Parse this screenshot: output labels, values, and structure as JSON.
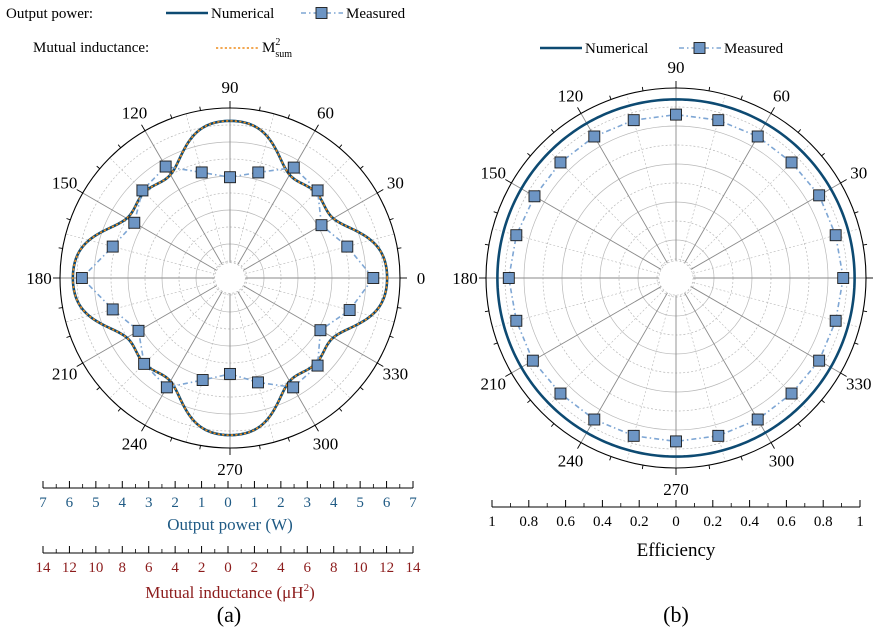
{
  "colors": {
    "numerical": "#0d4a72",
    "measured_line": "#7ea6d4",
    "measured_marker_fill": "#6d95c4",
    "mutual": "#ee8b1a",
    "power_axis": "#1f5a84",
    "mutual_axis": "#8c1c1c",
    "grid": "#b8b8b8",
    "spoke": "#8a8a8a"
  },
  "chart_data": [
    {
      "panel_label": "(a)",
      "type": "polar-line",
      "legend": {
        "row1_title": "Output power:",
        "row2_title": "Mutual inductance:",
        "numerical": "Numerical",
        "measured": "Measured",
        "mutual_main": "M",
        "mutual_sup": "2",
        "mutual_sub": "sum"
      },
      "angle_labels": [
        "0",
        "30",
        "60",
        "90",
        "120",
        "150",
        "180",
        "210",
        "240",
        "270",
        "300",
        "330"
      ],
      "r_max": 7,
      "power_axis": {
        "label": "Output power (W)",
        "ticks": [
          "7",
          "6",
          "5",
          "4",
          "3",
          "2",
          "1",
          "0",
          "1",
          "2",
          "3",
          "4",
          "5",
          "6",
          "7"
        ]
      },
      "mutual_axis": {
        "label_main": "Mutual inductance (μH",
        "label_sup": "2",
        "label_end": ")",
        "ticks": [
          "14",
          "12",
          "10",
          "8",
          "6",
          "4",
          "2",
          "0",
          "2",
          "4",
          "6",
          "8",
          "10",
          "12",
          "14"
        ]
      },
      "series": [
        {
          "name": "Numerical",
          "kind": "numerical",
          "model": {
            "formula": "c0 + c1*cos(4θ) + c2*cos(8θ) + c3*cos(12θ)",
            "coef": [
              5.55,
              0.86,
              0.18,
              -0.12
            ]
          }
        },
        {
          "name": "M²sum",
          "kind": "mutual",
          "model": {
            "formula": "c0 + c1*cos(4θ) + c2*cos(8θ) + c3*cos(12θ)",
            "coef": [
              5.55,
              0.86,
              0.18,
              -0.12
            ]
          }
        },
        {
          "name": "Measured",
          "kind": "measured",
          "theta": [
            0,
            15,
            30,
            45,
            60,
            75,
            90,
            105,
            120,
            135,
            150,
            165,
            180,
            195,
            210,
            225,
            240,
            255,
            270,
            285,
            300,
            315,
            330,
            345
          ],
          "r": [
            5.9,
            5.0,
            4.35,
            5.1,
            5.25,
            4.5,
            4.15,
            4.5,
            5.3,
            5.1,
            4.55,
            5.0,
            6.1,
            5.0,
            4.35,
            5.0,
            5.2,
            4.35,
            3.95,
            4.45,
            5.2,
            5.1,
            4.3,
            5.1
          ]
        }
      ]
    },
    {
      "panel_label": "(b)",
      "type": "polar-line",
      "legend": {
        "numerical": "Numerical",
        "measured": "Measured"
      },
      "angle_labels": [
        "0",
        "30",
        "60",
        "90",
        "120",
        "150",
        "180",
        "210",
        "240",
        "270",
        "300",
        "330"
      ],
      "r_max": 1,
      "efficiency_axis": {
        "label": "Efficiency",
        "ticks": [
          "1",
          "0.8",
          "0.6",
          "0.4",
          "0.2",
          "0",
          "0.2",
          "0.4",
          "0.6",
          "0.8",
          "1"
        ]
      },
      "series": [
        {
          "name": "Numerical",
          "kind": "numerical",
          "constant_r": 0.94
        },
        {
          "name": "Measured",
          "kind": "measured",
          "theta": [
            0,
            15,
            30,
            45,
            60,
            75,
            90,
            105,
            120,
            135,
            150,
            165,
            180,
            195,
            210,
            225,
            240,
            255,
            270,
            285,
            300,
            315,
            330,
            345
          ],
          "r": [
            0.88,
            0.87,
            0.87,
            0.86,
            0.86,
            0.86,
            0.86,
            0.86,
            0.86,
            0.86,
            0.86,
            0.87,
            0.88,
            0.87,
            0.87,
            0.86,
            0.86,
            0.86,
            0.86,
            0.86,
            0.86,
            0.86,
            0.87,
            0.87
          ]
        }
      ]
    }
  ]
}
